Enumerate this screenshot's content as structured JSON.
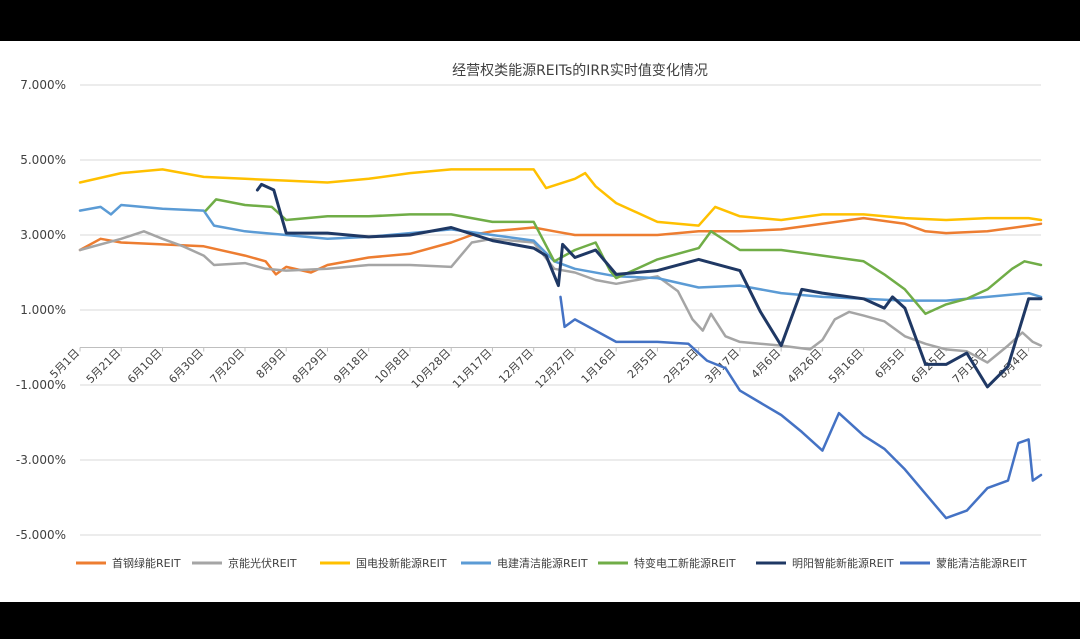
{
  "chart_data": {
    "type": "line",
    "title": "经营权类能源REITs的IRR实时值变化情况",
    "xlabel": "",
    "ylabel": "",
    "ylim": [
      -0.05,
      0.07
    ],
    "yticks": [
      "7.000%",
      "5.000%",
      "3.000%",
      "1.000%",
      "-1.000%",
      "-3.000%",
      "-5.000%"
    ],
    "ytick_values": [
      0.07,
      0.05,
      0.03,
      0.01,
      -0.01,
      -0.03,
      -0.05
    ],
    "x_start": "2024-05-01",
    "x_end": "2025-08-10",
    "xticks": [
      "5月1日",
      "5月21日",
      "6月10日",
      "6月30日",
      "7月20日",
      "8月9日",
      "8月29日",
      "9月18日",
      "10月8日",
      "10月28日",
      "11月17日",
      "12月7日",
      "12月27日",
      "1月16日",
      "2月5日",
      "2月25日",
      "3月17日",
      "4月6日",
      "4月26日",
      "5月16日",
      "6月5日",
      "6月25日",
      "7月15日",
      "8月4日"
    ],
    "xtick_dates": [
      "2024-05-01",
      "2024-05-21",
      "2024-06-10",
      "2024-06-30",
      "2024-07-20",
      "2024-08-09",
      "2024-08-29",
      "2024-09-18",
      "2024-10-08",
      "2024-10-28",
      "2024-11-17",
      "2024-12-07",
      "2024-12-27",
      "2025-01-16",
      "2025-02-05",
      "2025-02-25",
      "2025-03-17",
      "2025-04-06",
      "2025-04-26",
      "2025-05-16",
      "2025-06-05",
      "2025-06-25",
      "2025-07-15",
      "2025-08-04"
    ],
    "grid": true,
    "legend_position": "bottom",
    "series": [
      {
        "name": "首钢绿能REIT",
        "color": "#ED7D31",
        "points": [
          [
            "2024-05-01",
            0.026
          ],
          [
            "2024-05-11",
            0.029
          ],
          [
            "2024-05-21",
            0.028
          ],
          [
            "2024-06-10",
            0.0275
          ],
          [
            "2024-06-30",
            0.027
          ],
          [
            "2024-07-20",
            0.0245
          ],
          [
            "2024-07-30",
            0.023
          ],
          [
            "2024-08-04",
            0.0195
          ],
          [
            "2024-08-09",
            0.0215
          ],
          [
            "2024-08-21",
            0.02
          ],
          [
            "2024-08-29",
            0.022
          ],
          [
            "2024-09-18",
            0.024
          ],
          [
            "2024-10-08",
            0.025
          ],
          [
            "2024-10-28",
            0.028
          ],
          [
            "2024-11-07",
            0.03
          ],
          [
            "2024-11-17",
            0.031
          ],
          [
            "2024-12-07",
            0.032
          ],
          [
            "2024-12-17",
            0.031
          ],
          [
            "2024-12-27",
            0.03
          ],
          [
            "2025-01-16",
            0.03
          ],
          [
            "2025-02-05",
            0.03
          ],
          [
            "2025-02-25",
            0.031
          ],
          [
            "2025-03-17",
            0.031
          ],
          [
            "2025-04-06",
            0.0315
          ],
          [
            "2025-04-26",
            0.033
          ],
          [
            "2025-05-16",
            0.0345
          ],
          [
            "2025-06-05",
            0.033
          ],
          [
            "2025-06-15",
            0.031
          ],
          [
            "2025-06-25",
            0.0305
          ],
          [
            "2025-07-15",
            0.031
          ],
          [
            "2025-08-04",
            0.0325
          ],
          [
            "2025-08-10",
            0.033
          ]
        ]
      },
      {
        "name": "京能光伏REIT",
        "color": "#A5A5A5",
        "points": [
          [
            "2024-05-01",
            0.026
          ],
          [
            "2024-05-21",
            0.029
          ],
          [
            "2024-06-01",
            0.031
          ],
          [
            "2024-06-10",
            0.029
          ],
          [
            "2024-06-20",
            0.027
          ],
          [
            "2024-06-30",
            0.0245
          ],
          [
            "2024-07-05",
            0.022
          ],
          [
            "2024-07-20",
            0.0225
          ],
          [
            "2024-07-30",
            0.021
          ],
          [
            "2024-08-09",
            0.0205
          ],
          [
            "2024-08-29",
            0.021
          ],
          [
            "2024-09-18",
            0.022
          ],
          [
            "2024-10-08",
            0.022
          ],
          [
            "2024-10-28",
            0.0215
          ],
          [
            "2024-11-07",
            0.028
          ],
          [
            "2024-11-17",
            0.029
          ],
          [
            "2024-12-07",
            0.028
          ],
          [
            "2024-12-17",
            0.021
          ],
          [
            "2024-12-27",
            0.02
          ],
          [
            "2025-01-06",
            0.018
          ],
          [
            "2025-01-16",
            0.017
          ],
          [
            "2025-01-26",
            0.018
          ],
          [
            "2025-02-05",
            0.019
          ],
          [
            "2025-02-15",
            0.015
          ],
          [
            "2025-02-22",
            0.0075
          ],
          [
            "2025-02-27",
            0.0045
          ],
          [
            "2025-03-03",
            0.009
          ],
          [
            "2025-03-10",
            0.003
          ],
          [
            "2025-03-17",
            0.0015
          ],
          [
            "2025-04-06",
            0.0005
          ],
          [
            "2025-04-20",
            -0.0005
          ],
          [
            "2025-04-26",
            0.002
          ],
          [
            "2025-05-02",
            0.0075
          ],
          [
            "2025-05-09",
            0.0095
          ],
          [
            "2025-05-16",
            0.0085
          ],
          [
            "2025-05-26",
            0.007
          ],
          [
            "2025-06-05",
            0.003
          ],
          [
            "2025-06-15",
            0.001
          ],
          [
            "2025-06-25",
            -0.0005
          ],
          [
            "2025-07-05",
            -0.001
          ],
          [
            "2025-07-15",
            -0.004
          ],
          [
            "2025-07-25",
            0.0005
          ],
          [
            "2025-08-01",
            0.004
          ],
          [
            "2025-08-06",
            0.0015
          ],
          [
            "2025-08-10",
            0.0005
          ]
        ]
      },
      {
        "name": "国电投新能源REIT",
        "color": "#FFC000",
        "points": [
          [
            "2024-05-01",
            0.044
          ],
          [
            "2024-05-21",
            0.0465
          ],
          [
            "2024-06-10",
            0.0475
          ],
          [
            "2024-06-30",
            0.0455
          ],
          [
            "2024-07-20",
            0.045
          ],
          [
            "2024-08-09",
            0.0445
          ],
          [
            "2024-08-29",
            0.044
          ],
          [
            "2024-09-18",
            0.045
          ],
          [
            "2024-10-08",
            0.0465
          ],
          [
            "2024-10-28",
            0.0475
          ],
          [
            "2024-11-17",
            0.0475
          ],
          [
            "2024-12-07",
            0.0475
          ],
          [
            "2024-12-13",
            0.0425
          ],
          [
            "2024-12-27",
            0.045
          ],
          [
            "2025-01-01",
            0.0465
          ],
          [
            "2025-01-06",
            0.043
          ],
          [
            "2025-01-16",
            0.0385
          ],
          [
            "2025-02-05",
            0.0335
          ],
          [
            "2025-02-25",
            0.0325
          ],
          [
            "2025-03-05",
            0.0375
          ],
          [
            "2025-03-17",
            0.035
          ],
          [
            "2025-04-06",
            0.034
          ],
          [
            "2025-04-26",
            0.0355
          ],
          [
            "2025-05-16",
            0.0355
          ],
          [
            "2025-06-05",
            0.0345
          ],
          [
            "2025-06-25",
            0.034
          ],
          [
            "2025-07-15",
            0.0345
          ],
          [
            "2025-08-04",
            0.0345
          ],
          [
            "2025-08-10",
            0.034
          ]
        ]
      },
      {
        "name": "电建清洁能源REIT",
        "color": "#5B9BD5",
        "points": [
          [
            "2024-05-01",
            0.0365
          ],
          [
            "2024-05-11",
            0.0375
          ],
          [
            "2024-05-16",
            0.0355
          ],
          [
            "2024-05-21",
            0.038
          ],
          [
            "2024-06-10",
            0.037
          ],
          [
            "2024-06-30",
            0.0365
          ],
          [
            "2024-07-05",
            0.0325
          ],
          [
            "2024-07-20",
            0.031
          ],
          [
            "2024-08-09",
            0.03
          ],
          [
            "2024-08-29",
            0.029
          ],
          [
            "2024-09-18",
            0.0295
          ],
          [
            "2024-10-08",
            0.0305
          ],
          [
            "2024-10-28",
            0.0315
          ],
          [
            "2024-11-17",
            0.03
          ],
          [
            "2024-12-07",
            0.0285
          ],
          [
            "2024-12-17",
            0.023
          ],
          [
            "2024-12-27",
            0.021
          ],
          [
            "2025-01-16",
            0.019
          ],
          [
            "2025-02-05",
            0.0185
          ],
          [
            "2025-02-25",
            0.016
          ],
          [
            "2025-03-17",
            0.0165
          ],
          [
            "2025-04-06",
            0.0145
          ],
          [
            "2025-04-26",
            0.0135
          ],
          [
            "2025-05-16",
            0.013
          ],
          [
            "2025-06-05",
            0.0125
          ],
          [
            "2025-06-25",
            0.0125
          ],
          [
            "2025-07-15",
            0.0135
          ],
          [
            "2025-08-04",
            0.0145
          ],
          [
            "2025-08-10",
            0.0135
          ]
        ]
      },
      {
        "name": "特变电工新能源REIT",
        "color": "#70AD47",
        "points": [
          [
            "2024-07-01",
            0.0365
          ],
          [
            "2024-07-06",
            0.0395
          ],
          [
            "2024-07-20",
            0.038
          ],
          [
            "2024-08-02",
            0.0375
          ],
          [
            "2024-08-09",
            0.034
          ],
          [
            "2024-08-29",
            0.035
          ],
          [
            "2024-09-18",
            0.035
          ],
          [
            "2024-10-08",
            0.0355
          ],
          [
            "2024-10-28",
            0.0355
          ],
          [
            "2024-11-17",
            0.0335
          ],
          [
            "2024-12-07",
            0.0335
          ],
          [
            "2024-12-17",
            0.023
          ],
          [
            "2024-12-27",
            0.026
          ],
          [
            "2025-01-06",
            0.028
          ],
          [
            "2025-01-13",
            0.0205
          ],
          [
            "2025-01-16",
            0.0185
          ],
          [
            "2025-02-05",
            0.0235
          ],
          [
            "2025-02-25",
            0.0265
          ],
          [
            "2025-03-03",
            0.031
          ],
          [
            "2025-03-17",
            0.026
          ],
          [
            "2025-04-06",
            0.026
          ],
          [
            "2025-04-26",
            0.0245
          ],
          [
            "2025-05-16",
            0.023
          ],
          [
            "2025-05-26",
            0.0195
          ],
          [
            "2025-06-05",
            0.0155
          ],
          [
            "2025-06-15",
            0.009
          ],
          [
            "2025-06-25",
            0.0115
          ],
          [
            "2025-07-05",
            0.013
          ],
          [
            "2025-07-15",
            0.0155
          ],
          [
            "2025-07-27",
            0.021
          ],
          [
            "2025-08-02",
            0.023
          ],
          [
            "2025-08-10",
            0.022
          ]
        ]
      },
      {
        "name": "明阳智能新能源REIT",
        "color": "#1F3864",
        "points": [
          [
            "2024-07-26",
            0.042
          ],
          [
            "2024-07-28",
            0.0435
          ],
          [
            "2024-08-03",
            0.042
          ],
          [
            "2024-08-09",
            0.0305
          ],
          [
            "2024-08-29",
            0.0305
          ],
          [
            "2024-09-18",
            0.0295
          ],
          [
            "2024-10-08",
            0.03
          ],
          [
            "2024-10-28",
            0.032
          ],
          [
            "2024-11-17",
            0.0285
          ],
          [
            "2024-12-07",
            0.0265
          ],
          [
            "2024-12-13",
            0.0245
          ],
          [
            "2024-12-19",
            0.0165
          ],
          [
            "2024-12-21",
            0.0275
          ],
          [
            "2024-12-27",
            0.024
          ],
          [
            "2025-01-06",
            0.026
          ],
          [
            "2025-01-16",
            0.0195
          ],
          [
            "2025-02-05",
            0.0205
          ],
          [
            "2025-02-25",
            0.0235
          ],
          [
            "2025-03-17",
            0.0205
          ],
          [
            "2025-03-27",
            0.0095
          ],
          [
            "2025-04-06",
            0.0005
          ],
          [
            "2025-04-16",
            0.0155
          ],
          [
            "2025-04-26",
            0.0145
          ],
          [
            "2025-05-16",
            0.013
          ],
          [
            "2025-05-26",
            0.0105
          ],
          [
            "2025-05-30",
            0.0135
          ],
          [
            "2025-06-05",
            0.0105
          ],
          [
            "2025-06-15",
            -0.0045
          ],
          [
            "2025-06-25",
            -0.0045
          ],
          [
            "2025-07-05",
            -0.0015
          ],
          [
            "2025-07-15",
            -0.0105
          ],
          [
            "2025-07-25",
            -0.005
          ],
          [
            "2025-08-04",
            0.013
          ],
          [
            "2025-08-10",
            0.013
          ]
        ]
      },
      {
        "name": "蒙能清洁能源REIT",
        "color": "#4472C4",
        "points": [
          [
            "2024-12-20",
            0.0135
          ],
          [
            "2024-12-22",
            0.0055
          ],
          [
            "2024-12-27",
            0.0075
          ],
          [
            "2025-01-06",
            0.0045
          ],
          [
            "2025-01-16",
            0.0015
          ],
          [
            "2025-02-05",
            0.0015
          ],
          [
            "2025-02-20",
            0.001
          ],
          [
            "2025-03-01",
            -0.0035
          ],
          [
            "2025-03-10",
            -0.0055
          ],
          [
            "2025-03-17",
            -0.0115
          ],
          [
            "2025-04-06",
            -0.018
          ],
          [
            "2025-04-16",
            -0.0225
          ],
          [
            "2025-04-26",
            -0.0275
          ],
          [
            "2025-05-04",
            -0.0175
          ],
          [
            "2025-05-16",
            -0.0235
          ],
          [
            "2025-05-26",
            -0.027
          ],
          [
            "2025-06-05",
            -0.0325
          ],
          [
            "2025-06-15",
            -0.039
          ],
          [
            "2025-06-25",
            -0.0455
          ],
          [
            "2025-07-05",
            -0.0435
          ],
          [
            "2025-07-15",
            -0.0375
          ],
          [
            "2025-07-25",
            -0.0355
          ],
          [
            "2025-07-30",
            -0.0255
          ],
          [
            "2025-08-04",
            -0.0245
          ],
          [
            "2025-08-06",
            -0.0355
          ],
          [
            "2025-08-10",
            -0.034
          ]
        ]
      }
    ]
  }
}
